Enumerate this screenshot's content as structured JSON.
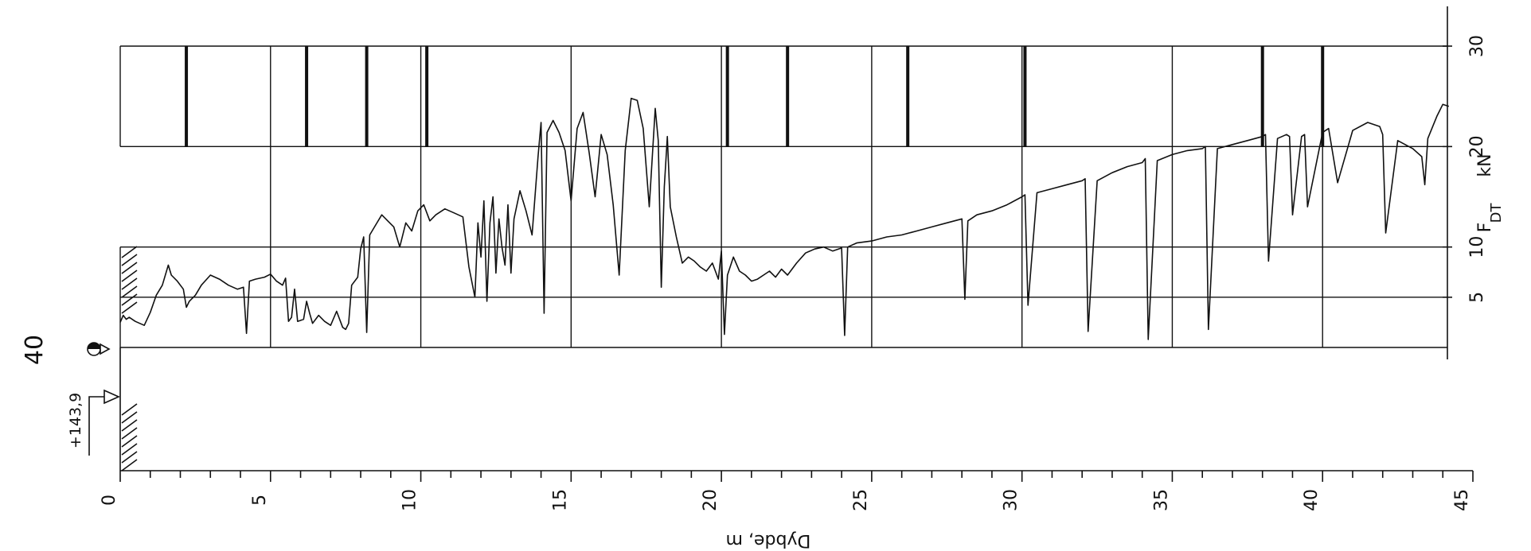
{
  "probe_number": "40",
  "elevation_label": "+143,9",
  "chart_data": {
    "type": "line",
    "xlabel": "Dybde, m",
    "ylabel": "F_DT  kN",
    "ylabel_main": "F",
    "ylabel_sub": "DT",
    "ylabel_unit": "kN",
    "xlim": [
      0,
      45
    ],
    "ylim": [
      0,
      30
    ],
    "x_ticks": [
      0,
      5,
      10,
      15,
      20,
      25,
      30,
      35,
      40,
      45
    ],
    "x_tick_labels": [
      "0",
      "5",
      "10",
      "15",
      "20",
      "25",
      "30",
      "35",
      "40",
      "45"
    ],
    "y_ticks": [
      5,
      10,
      20,
      30
    ],
    "y_tick_labels": [
      "5",
      "10",
      "20",
      "30"
    ],
    "rod_join_depths": [
      2.2,
      6.2,
      8.2,
      10.2,
      20.2,
      22.2,
      26.2,
      30.1,
      38.0,
      40.0
    ],
    "series": [
      {
        "x": [
          0.0,
          0.1,
          0.2,
          0.3,
          0.5,
          0.8,
          1.0,
          1.2,
          1.4,
          1.6,
          1.7,
          1.9,
          2.1,
          2.2,
          2.3,
          2.5,
          2.7,
          3.0,
          3.3,
          3.6,
          3.9,
          4.1,
          4.2,
          4.3,
          4.5,
          4.8,
          5.0,
          5.2,
          5.4,
          5.5,
          5.6,
          5.7,
          5.8,
          5.9,
          6.1,
          6.2,
          6.3,
          6.4,
          6.6,
          6.8,
          7.0,
          7.2,
          7.4,
          7.5,
          7.6,
          7.7,
          7.9,
          8.0,
          8.1,
          8.2,
          8.3,
          8.5,
          8.7,
          8.9,
          9.1,
          9.3,
          9.5,
          9.7,
          9.9,
          10.1,
          10.3,
          10.5,
          10.8,
          11.1,
          11.4,
          11.6,
          11.8,
          11.9,
          12.0,
          12.1,
          12.2,
          12.3,
          12.4,
          12.5,
          12.6,
          12.7,
          12.8,
          12.9,
          13.0,
          13.1,
          13.3,
          13.5,
          13.7,
          13.9,
          14.0,
          14.1,
          14.2,
          14.4,
          14.6,
          14.8,
          15.0,
          15.2,
          15.4,
          15.6,
          15.8,
          16.0,
          16.2,
          16.4,
          16.6,
          16.8,
          17.0,
          17.2,
          17.4,
          17.6,
          17.8,
          17.9,
          18.0,
          18.1,
          18.2,
          18.3,
          18.5,
          18.7,
          18.9,
          19.1,
          19.3,
          19.5,
          19.7,
          19.9,
          20.0,
          20.1,
          20.2,
          20.4,
          20.6,
          20.8,
          21.0,
          21.2,
          21.4,
          21.6,
          21.8,
          22.0,
          22.2,
          22.5,
          22.8,
          23.1,
          23.4,
          23.7,
          24.0,
          24.1,
          24.2,
          24.5,
          25.0,
          25.5,
          26.0,
          26.5,
          27.0,
          27.5,
          28.0,
          28.1,
          28.2,
          28.5,
          29.0,
          29.5,
          30.0,
          30.1,
          30.2,
          30.5,
          31.0,
          31.5,
          32.0,
          32.1,
          32.2,
          32.5,
          33.0,
          33.5,
          34.0,
          34.1,
          34.2,
          34.5,
          35.0,
          35.5,
          36.0,
          36.1,
          36.2,
          36.5,
          37.0,
          37.5,
          38.0,
          38.1,
          38.2,
          38.5,
          38.8,
          38.9,
          39.0,
          39.3,
          39.4,
          39.5,
          40.0,
          40.1,
          40.2,
          40.5,
          41.0,
          41.5,
          41.9,
          42.0,
          42.1,
          42.5,
          43.0,
          43.3,
          43.4,
          43.5,
          43.8,
          44.0,
          44.2
        ],
        "y": [
          2.5,
          3.2,
          2.8,
          3.0,
          2.6,
          2.2,
          3.5,
          5.2,
          6.2,
          8.2,
          7.2,
          6.6,
          5.8,
          4.0,
          4.6,
          5.2,
          6.2,
          7.2,
          6.8,
          6.2,
          5.8,
          6.0,
          1.4,
          6.6,
          6.8,
          7.0,
          7.3,
          6.6,
          6.2,
          6.9,
          2.6,
          3.0,
          5.8,
          2.6,
          2.8,
          4.6,
          3.4,
          2.4,
          3.2,
          2.6,
          2.2,
          3.6,
          2.0,
          1.8,
          2.4,
          6.2,
          7.0,
          9.8,
          11.0,
          1.5,
          11.2,
          12.2,
          13.2,
          12.6,
          12.0,
          10.0,
          12.4,
          11.6,
          13.6,
          14.2,
          12.6,
          13.2,
          13.8,
          13.4,
          13.0,
          8.0,
          5.0,
          12.4,
          9.0,
          14.6,
          4.6,
          12.4,
          15.0,
          7.4,
          12.8,
          10.0,
          8.2,
          14.2,
          7.4,
          12.8,
          15.6,
          13.6,
          11.2,
          19.0,
          22.4,
          3.4,
          21.4,
          22.6,
          21.4,
          19.6,
          14.6,
          21.8,
          23.4,
          19.4,
          15.0,
          21.2,
          19.2,
          14.2,
          7.2,
          19.6,
          24.8,
          24.6,
          21.8,
          14.0,
          23.8,
          20.6,
          6.0,
          16.0,
          21.0,
          14.0,
          11.0,
          8.4,
          9.0,
          8.6,
          8.0,
          7.6,
          8.4,
          6.8,
          9.6,
          1.3,
          7.2,
          9.0,
          7.6,
          7.2,
          6.6,
          6.8,
          7.2,
          7.6,
          7.0,
          7.8,
          7.2,
          8.4,
          9.4,
          9.8,
          10.0,
          9.6,
          9.9,
          1.2,
          10.0,
          10.4,
          10.6,
          11.0,
          11.2,
          11.6,
          12.0,
          12.4,
          12.8,
          4.8,
          12.6,
          13.2,
          13.6,
          14.2,
          15.0,
          15.2,
          4.2,
          15.4,
          15.8,
          16.2,
          16.6,
          16.8,
          1.6,
          16.6,
          17.4,
          18.0,
          18.4,
          18.8,
          0.8,
          18.6,
          19.2,
          19.6,
          19.8,
          20.0,
          1.8,
          19.8,
          20.2,
          20.6,
          21.0,
          21.2,
          8.6,
          20.8,
          21.2,
          21.0,
          13.2,
          21.0,
          21.2,
          14.0,
          21.4,
          21.6,
          21.8,
          16.4,
          21.6,
          22.4,
          22.0,
          21.2,
          11.4,
          20.6,
          19.8,
          19.0,
          16.2,
          20.8,
          23.0,
          24.2,
          24.0
        ]
      }
    ],
    "grid": true
  }
}
